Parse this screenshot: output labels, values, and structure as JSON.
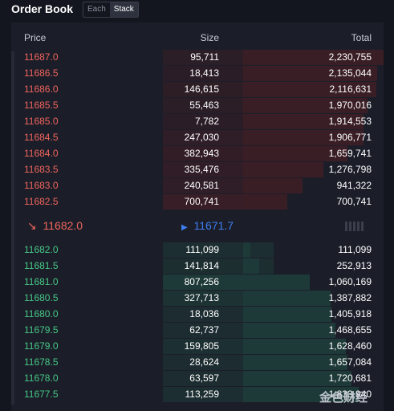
{
  "header": {
    "title": "Order Book",
    "toggle": [
      "Each",
      "Stack"
    ],
    "active_toggle": "Stack"
  },
  "columns": {
    "price": "Price",
    "size": "Size",
    "total": "Total"
  },
  "asks": [
    {
      "price": "11687.0",
      "size": "95,711",
      "total": "2,230,755",
      "size_val": 95711,
      "total_val": 2230755
    },
    {
      "price": "11686.5",
      "size": "18,413",
      "total": "2,135,044",
      "size_val": 18413,
      "total_val": 2135044
    },
    {
      "price": "11686.0",
      "size": "146,615",
      "total": "2,116,631",
      "size_val": 146615,
      "total_val": 2116631
    },
    {
      "price": "11685.5",
      "size": "55,463",
      "total": "1,970,016",
      "size_val": 55463,
      "total_val": 1970016
    },
    {
      "price": "11685.0",
      "size": "7,782",
      "total": "1,914,553",
      "size_val": 7782,
      "total_val": 1914553
    },
    {
      "price": "11684.5",
      "size": "247,030",
      "total": "1,906,771",
      "size_val": 247030,
      "total_val": 1906771
    },
    {
      "price": "11684.0",
      "size": "382,943",
      "total": "1,659,741",
      "size_val": 382943,
      "total_val": 1659741
    },
    {
      "price": "11683.5",
      "size": "335,476",
      "total": "1,276,798",
      "size_val": 335476,
      "total_val": 1276798
    },
    {
      "price": "11683.0",
      "size": "240,581",
      "total": "941,322",
      "size_val": 240581,
      "total_val": 941322
    },
    {
      "price": "11682.5",
      "size": "700,741",
      "total": "700,741",
      "size_val": 700741,
      "total_val": 700741
    }
  ],
  "mid": {
    "arrow": "↘",
    "last_price": "11682.0",
    "mark_icon": "▶",
    "mark_price": "11671.7"
  },
  "bids": [
    {
      "price": "11682.0",
      "size": "111,099",
      "total": "111,099",
      "size_val": 111099,
      "total_val": 111099
    },
    {
      "price": "11681.5",
      "size": "141,814",
      "total": "252,913",
      "size_val": 141814,
      "total_val": 252913
    },
    {
      "price": "11681.0",
      "size": "807,256",
      "total": "1,060,169",
      "size_val": 807256,
      "total_val": 1060169
    },
    {
      "price": "11680.5",
      "size": "327,713",
      "total": "1,387,882",
      "size_val": 327713,
      "total_val": 1387882
    },
    {
      "price": "11680.0",
      "size": "18,036",
      "total": "1,405,918",
      "size_val": 18036,
      "total_val": 1405918
    },
    {
      "price": "11679.5",
      "size": "62,737",
      "total": "1,468,655",
      "size_val": 62737,
      "total_val": 1468655
    },
    {
      "price": "11679.0",
      "size": "159,805",
      "total": "1,628,460",
      "size_val": 159805,
      "total_val": 1628460
    },
    {
      "price": "11678.5",
      "size": "28,624",
      "total": "1,657,084",
      "size_val": 28624,
      "total_val": 1657084
    },
    {
      "price": "11678.0",
      "size": "63,597",
      "total": "1,720,681",
      "size_val": 63597,
      "total_val": 1720681
    },
    {
      "price": "11677.5",
      "size": "113,259",
      "total": "1,833,940",
      "size_val": 113259,
      "total_val": 1833940
    }
  ],
  "scale": {
    "max_size": 807256,
    "max_total": 2230755
  },
  "colors": {
    "ask_bar": "#3a1e26",
    "bid_bar": "#1e3a38",
    "ask_text": "#f0645c",
    "bid_text": "#47c785",
    "mark": "#3f7df0"
  },
  "watermark": "金色财经"
}
